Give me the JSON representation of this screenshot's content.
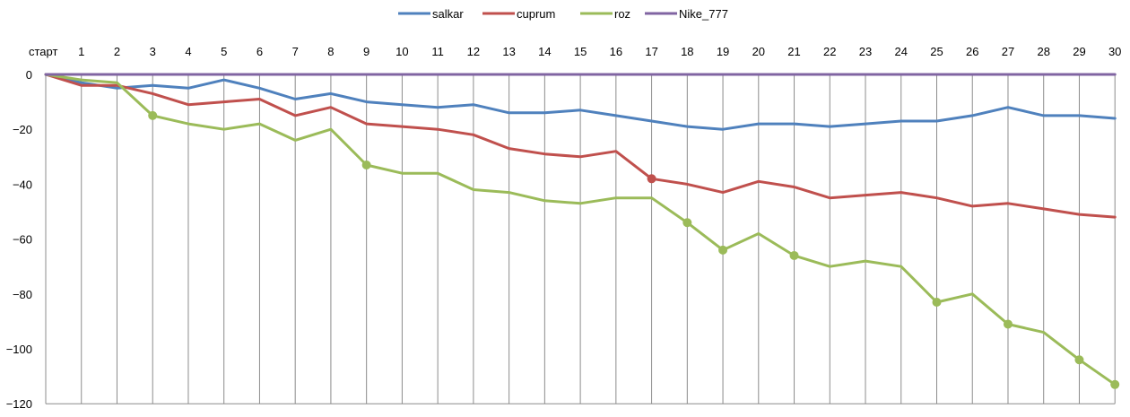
{
  "chart_data": {
    "type": "line",
    "categories": [
      "старт",
      "1",
      "2",
      "3",
      "4",
      "5",
      "6",
      "7",
      "8",
      "9",
      "10",
      "11",
      "12",
      "13",
      "14",
      "15",
      "16",
      "17",
      "18",
      "19",
      "20",
      "21",
      "22",
      "23",
      "24",
      "25",
      "26",
      "27",
      "28",
      "29",
      "30"
    ],
    "ylim": [
      -120,
      0
    ],
    "yticks": [
      0,
      -20,
      -40,
      -60,
      -80,
      -100,
      -120
    ],
    "x_axis_position": "top",
    "grid": {
      "vertical": true,
      "horizontal": false
    },
    "legend_position": "top",
    "series": [
      {
        "name": "salkar",
        "color": "#4F81BD",
        "values": [
          0,
          -3,
          -5,
          -4,
          -5,
          -2,
          -5,
          -9,
          -7,
          -10,
          -11,
          -12,
          -11,
          -14,
          -14,
          -13,
          -15,
          -17,
          -19,
          -20,
          -18,
          -18,
          -19,
          -18,
          -17,
          -17,
          -15,
          -12,
          -15,
          -15,
          -16
        ],
        "markers": []
      },
      {
        "name": "cuprum",
        "color": "#C0504D",
        "values": [
          0,
          -4,
          -4,
          -7,
          -11,
          -10,
          -9,
          -15,
          -12,
          -18,
          -19,
          -20,
          -22,
          -27,
          -29,
          -30,
          -28,
          -38,
          -40,
          -43,
          -39,
          -41,
          -45,
          -44,
          -43,
          -45,
          -48,
          -47,
          -49,
          -51,
          -52
        ],
        "markers": [
          17
        ]
      },
      {
        "name": "roz",
        "color": "#9BBB59",
        "values": [
          0,
          -2,
          -3,
          -15,
          -18,
          -20,
          -18,
          -24,
          -20,
          -33,
          -36,
          -36,
          -42,
          -43,
          -46,
          -47,
          -45,
          -45,
          -54,
          -64,
          -58,
          -66,
          -70,
          -68,
          -70,
          -83,
          -80,
          -91,
          -94,
          -104,
          -113
        ],
        "markers": [
          3,
          9,
          18,
          19,
          21,
          25,
          27,
          29,
          30
        ]
      },
      {
        "name": "Nike_777",
        "color": "#8064A2",
        "values": [
          0,
          0,
          0,
          0,
          0,
          0,
          0,
          0,
          0,
          0,
          0,
          0,
          0,
          0,
          0,
          0,
          0,
          0,
          0,
          0,
          0,
          0,
          0,
          0,
          0,
          0,
          0,
          0,
          0,
          0,
          0
        ],
        "markers": []
      }
    ]
  }
}
